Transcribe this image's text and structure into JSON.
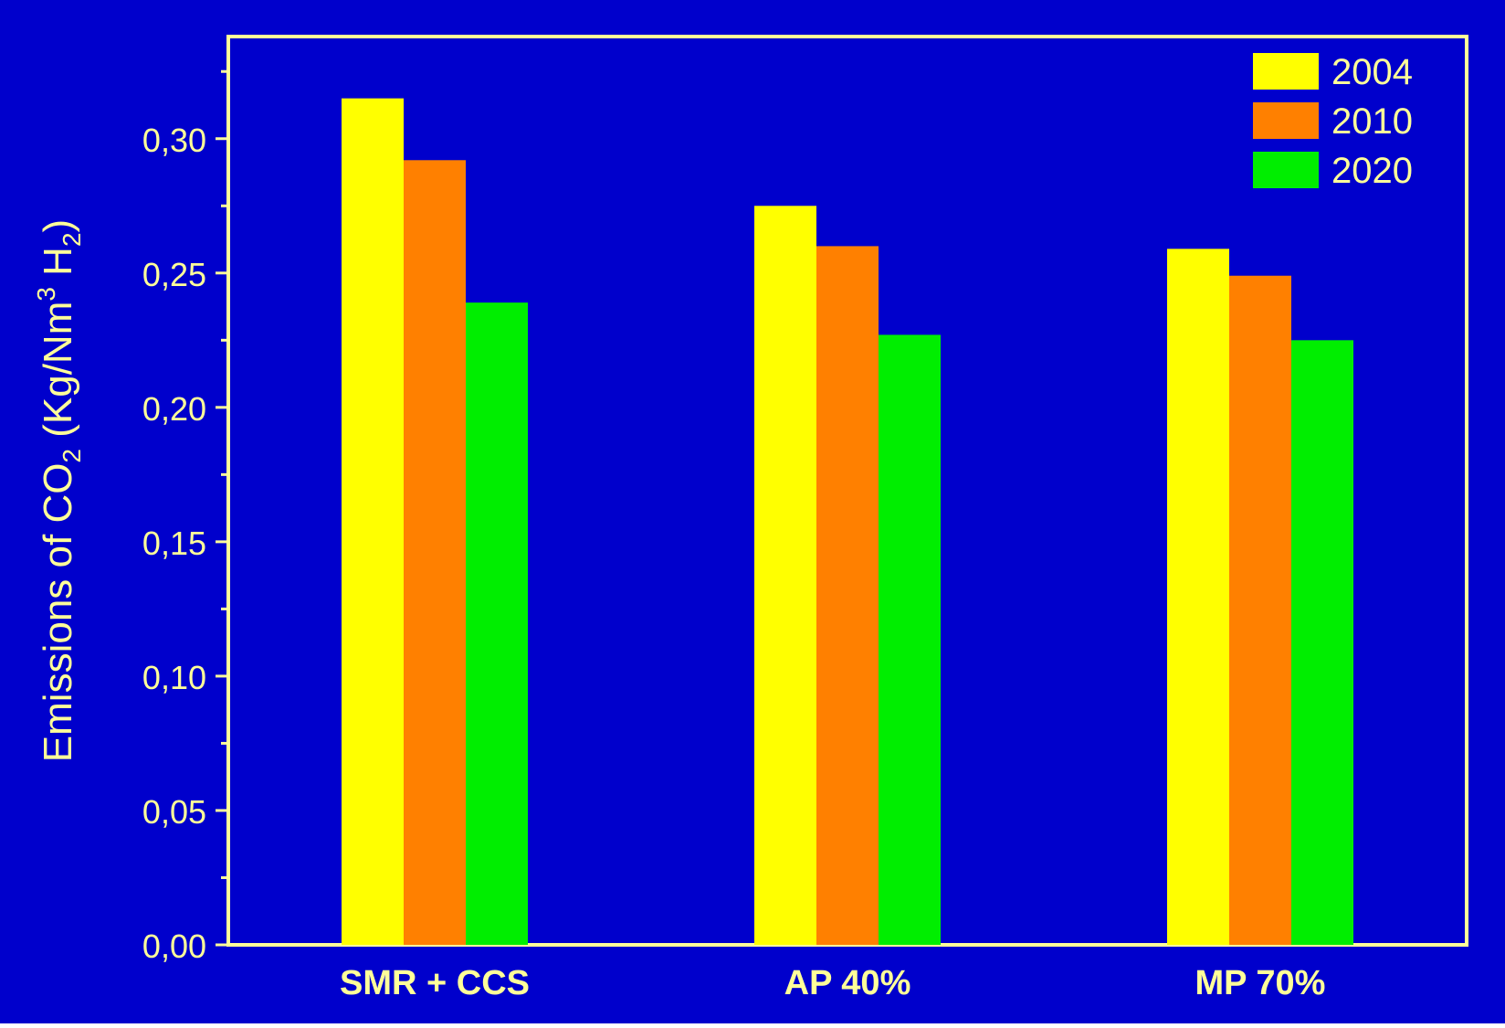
{
  "chart_data": {
    "type": "bar",
    "ylabel": {
      "prefix": "Emissions of CO",
      "co2_sub": "2",
      "mid": " (Kg/Nm",
      "nm_sup": "3",
      "h": " H",
      "h_sub": "2",
      "suffix": ")"
    },
    "categories": [
      "SMR + CCS",
      "AP 40%",
      "MP 70%"
    ],
    "series": [
      {
        "name": "2004",
        "color": "#ffff00",
        "values": [
          0.315,
          0.275,
          0.259
        ]
      },
      {
        "name": "2010",
        "color": "#ff8000",
        "values": [
          0.292,
          0.26,
          0.249
        ]
      },
      {
        "name": "2020",
        "color": "#00ee00",
        "values": [
          0.239,
          0.227,
          0.225
        ]
      }
    ],
    "yticks": [
      "0,00",
      "0,05",
      "0,10",
      "0,15",
      "0,20",
      "0,25",
      "0,30"
    ],
    "ylim": [
      0,
      0.338
    ],
    "legend_position": "top-right",
    "grid": false,
    "colors": {
      "background": "#0000cc",
      "axis": "#ffff99",
      "text": "#ffff99"
    }
  }
}
